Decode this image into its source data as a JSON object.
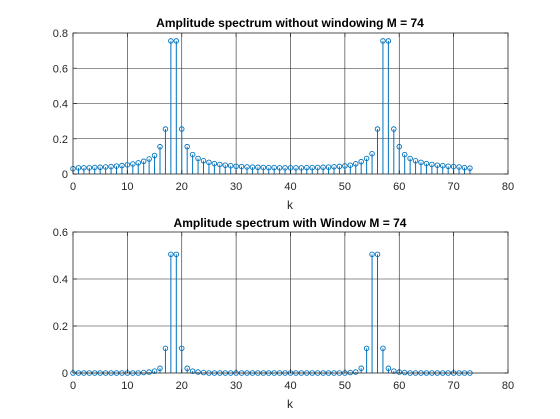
{
  "chart_data": [
    {
      "type": "stem",
      "title": "Amplitude spectrum without windowing M = 74",
      "xlabel": "k",
      "ylabel": "",
      "xlim": [
        0,
        80
      ],
      "ylim": [
        0,
        0.8
      ],
      "xticks": [
        0,
        10,
        20,
        30,
        40,
        50,
        60,
        70,
        80
      ],
      "yticks": [
        0,
        0.2,
        0.4,
        0.6,
        0.8
      ],
      "xtick_labels": [
        "0",
        "10",
        "20",
        "30",
        "40",
        "50",
        "60",
        "70",
        "80"
      ],
      "ytick_labels": [
        "0",
        "0.2",
        "0.4",
        "0.6",
        "0.8"
      ],
      "grid": true,
      "color": "#0072BD",
      "x": [
        0,
        1,
        2,
        3,
        4,
        5,
        6,
        7,
        8,
        9,
        10,
        11,
        12,
        13,
        14,
        15,
        16,
        17,
        18,
        19,
        20,
        21,
        22,
        23,
        24,
        25,
        26,
        27,
        28,
        29,
        30,
        31,
        32,
        33,
        34,
        35,
        36,
        37,
        38,
        39,
        40,
        41,
        42,
        43,
        44,
        45,
        46,
        47,
        48,
        49,
        50,
        51,
        52,
        53,
        54,
        55,
        56,
        57,
        58,
        59,
        60,
        61,
        62,
        63,
        64,
        65,
        66,
        67,
        68,
        69,
        70,
        71,
        72,
        73
      ],
      "values": [
        0.03,
        0.035,
        0.035,
        0.035,
        0.037,
        0.038,
        0.04,
        0.042,
        0.045,
        0.048,
        0.052,
        0.057,
        0.063,
        0.072,
        0.085,
        0.105,
        0.155,
        0.255,
        0.755,
        0.755,
        0.255,
        0.155,
        0.11,
        0.088,
        0.075,
        0.066,
        0.059,
        0.054,
        0.05,
        0.047,
        0.044,
        0.042,
        0.04,
        0.039,
        0.038,
        0.037,
        0.036,
        0.036,
        0.035,
        0.035,
        0.035,
        0.035,
        0.035,
        0.036,
        0.036,
        0.037,
        0.038,
        0.039,
        0.041,
        0.043,
        0.046,
        0.05,
        0.058,
        0.07,
        0.088,
        0.115,
        0.255,
        0.755,
        0.755,
        0.255,
        0.155,
        0.11,
        0.088,
        0.075,
        0.066,
        0.059,
        0.054,
        0.05,
        0.047,
        0.044,
        0.042,
        0.04,
        0.036,
        0.033
      ]
    },
    {
      "type": "stem",
      "title": "Amplitude spectrum with Window M = 74",
      "xlabel": "k",
      "ylabel": "",
      "xlim": [
        0,
        80
      ],
      "ylim": [
        0,
        0.6
      ],
      "xticks": [
        0,
        10,
        20,
        30,
        40,
        50,
        60,
        70,
        80
      ],
      "yticks": [
        0,
        0.2,
        0.4,
        0.6
      ],
      "xtick_labels": [
        "0",
        "10",
        "20",
        "30",
        "40",
        "50",
        "60",
        "70",
        "80"
      ],
      "ytick_labels": [
        "0",
        "0.2",
        "0.4",
        "0.6"
      ],
      "grid": true,
      "color": "#0072BD",
      "x": [
        0,
        1,
        2,
        3,
        4,
        5,
        6,
        7,
        8,
        9,
        10,
        11,
        12,
        13,
        14,
        15,
        16,
        17,
        18,
        19,
        20,
        21,
        22,
        23,
        24,
        25,
        26,
        27,
        28,
        29,
        30,
        31,
        32,
        33,
        34,
        35,
        36,
        37,
        38,
        39,
        40,
        41,
        42,
        43,
        44,
        45,
        46,
        47,
        48,
        49,
        50,
        51,
        52,
        53,
        54,
        55,
        56,
        57,
        58,
        59,
        60,
        61,
        62,
        63,
        64,
        65,
        66,
        67,
        68,
        69,
        70,
        71,
        72,
        73
      ],
      "values": [
        0.0,
        0.0,
        0.0,
        0.0,
        0.0,
        0.0,
        0.0,
        0.0,
        0.0,
        0.0,
        0.0,
        0.0,
        0.0,
        0.002,
        0.004,
        0.008,
        0.02,
        0.105,
        0.505,
        0.505,
        0.105,
        0.02,
        0.008,
        0.004,
        0.002,
        0.0,
        0.0,
        0.0,
        0.0,
        0.0,
        0.0,
        0.0,
        0.0,
        0.0,
        0.0,
        0.0,
        0.0,
        0.0,
        0.0,
        0.0,
        0.0,
        0.0,
        0.0,
        0.0,
        0.0,
        0.0,
        0.0,
        0.0,
        0.0,
        0.0,
        0.0,
        0.002,
        0.004,
        0.02,
        0.105,
        0.505,
        0.505,
        0.105,
        0.02,
        0.008,
        0.004,
        0.002,
        0.0,
        0.0,
        0.0,
        0.0,
        0.0,
        0.0,
        0.0,
        0.0,
        0.0,
        0.0,
        0.0,
        0.0
      ]
    }
  ]
}
